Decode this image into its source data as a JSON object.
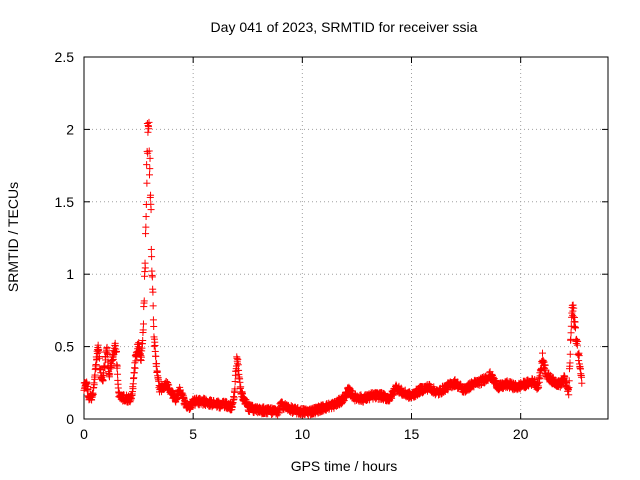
{
  "chart_data": {
    "type": "scatter",
    "title": "Day 041 of 2023, SRMTID for receiver ssia",
    "xlabel": "GPS time / hours",
    "ylabel": "SRMTID / TECUs",
    "xlim": [
      0,
      24
    ],
    "ylim": [
      0,
      2.5
    ],
    "xticks": [
      0,
      5,
      10,
      15,
      20
    ],
    "yticks": [
      0,
      0.5,
      1,
      1.5,
      2,
      2.5
    ],
    "xtick_labels": [
      "0",
      "5",
      "10",
      "15",
      "20"
    ],
    "ytick_labels": [
      "0",
      "0.5",
      "1",
      "1.5",
      "2",
      "2.5"
    ],
    "grid": true,
    "marker": "+",
    "color": "#ff0000",
    "series": [
      {
        "name": "SRMTID",
        "profile": {
          "x": [
            0.0,
            0.1,
            0.25,
            0.4,
            0.55,
            0.65,
            0.75,
            0.85,
            0.95,
            1.05,
            1.15,
            1.3,
            1.45,
            1.6,
            1.75,
            1.9,
            2.0,
            2.2,
            2.35,
            2.5,
            2.6,
            2.7,
            2.8,
            2.9,
            2.95,
            3.0,
            3.05,
            3.1,
            3.2,
            3.3,
            3.45,
            3.6,
            3.8,
            4.0,
            4.2,
            4.4,
            4.6,
            4.8,
            5.0,
            5.5,
            6.0,
            6.5,
            6.8,
            6.9,
            7.0,
            7.2,
            7.5,
            8.0,
            8.5,
            8.9,
            9.0,
            9.3,
            9.6,
            10.0,
            10.3,
            10.6,
            11.0,
            11.5,
            11.9,
            12.1,
            12.4,
            12.8,
            13.2,
            13.6,
            14.0,
            14.3,
            14.6,
            15.0,
            15.4,
            15.8,
            16.2,
            16.6,
            17.0,
            17.4,
            17.8,
            18.2,
            18.6,
            19.0,
            19.4,
            19.8,
            20.2,
            20.6,
            20.8,
            21.0,
            21.2,
            21.5,
            21.8,
            22.0,
            22.2,
            22.35,
            22.45,
            22.55,
            22.65,
            22.8
          ],
          "y": [
            0.22,
            0.25,
            0.14,
            0.16,
            0.38,
            0.52,
            0.32,
            0.26,
            0.38,
            0.48,
            0.3,
            0.42,
            0.52,
            0.16,
            0.14,
            0.15,
            0.13,
            0.15,
            0.4,
            0.52,
            0.4,
            0.6,
            1.05,
            1.9,
            2.05,
            1.8,
            1.5,
            1.15,
            0.55,
            0.4,
            0.2,
            0.22,
            0.24,
            0.18,
            0.14,
            0.2,
            0.12,
            0.08,
            0.12,
            0.12,
            0.1,
            0.1,
            0.08,
            0.2,
            0.44,
            0.18,
            0.08,
            0.06,
            0.06,
            0.04,
            0.1,
            0.08,
            0.06,
            0.05,
            0.05,
            0.06,
            0.08,
            0.1,
            0.14,
            0.2,
            0.15,
            0.14,
            0.16,
            0.16,
            0.14,
            0.22,
            0.18,
            0.16,
            0.2,
            0.22,
            0.18,
            0.22,
            0.25,
            0.2,
            0.24,
            0.26,
            0.3,
            0.22,
            0.24,
            0.22,
            0.24,
            0.26,
            0.22,
            0.42,
            0.3,
            0.26,
            0.24,
            0.28,
            0.18,
            0.76,
            0.7,
            0.55,
            0.45,
            0.25
          ]
        }
      }
    ]
  }
}
